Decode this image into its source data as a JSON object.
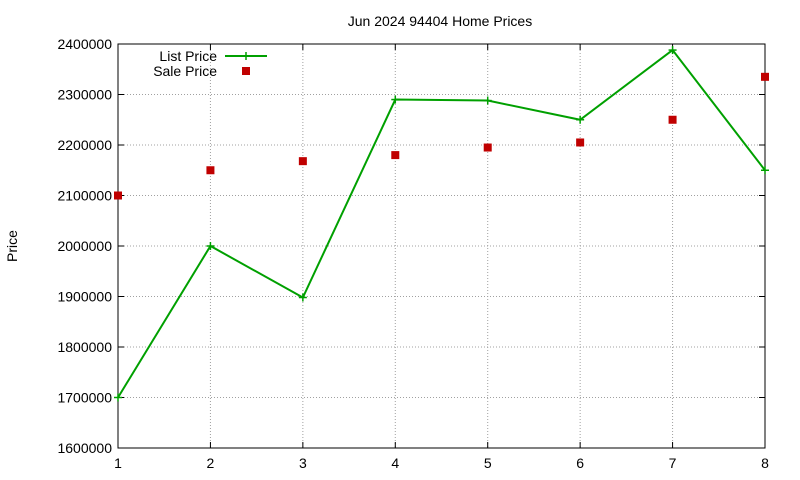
{
  "chart_data": {
    "type": "line",
    "title": "Jun 2024 94404 Home Prices",
    "xlabel": "",
    "ylabel": "Price",
    "x": [
      1,
      2,
      3,
      4,
      5,
      6,
      7,
      8
    ],
    "xlim": [
      1,
      8
    ],
    "ylim": [
      1600000,
      2400000
    ],
    "xticks": [
      "1",
      "2",
      "3",
      "4",
      "5",
      "6",
      "7",
      "8"
    ],
    "yticks": [
      "1600000",
      "1700000",
      "1800000",
      "1900000",
      "2000000",
      "2100000",
      "2200000",
      "2300000",
      "2400000"
    ],
    "grid": true,
    "legend_position": "top-left",
    "series": [
      {
        "name": "List Price",
        "style": "line-with-plus-markers",
        "color": "#00a000",
        "values": [
          1700000,
          2000000,
          1898000,
          2290000,
          2288000,
          2250000,
          2388000,
          2150000
        ]
      },
      {
        "name": "Sale Price",
        "style": "square-markers",
        "color": "#c00000",
        "values": [
          2100000,
          2150000,
          2168000,
          2180000,
          2195000,
          2205000,
          2250000,
          2335000
        ]
      }
    ]
  }
}
